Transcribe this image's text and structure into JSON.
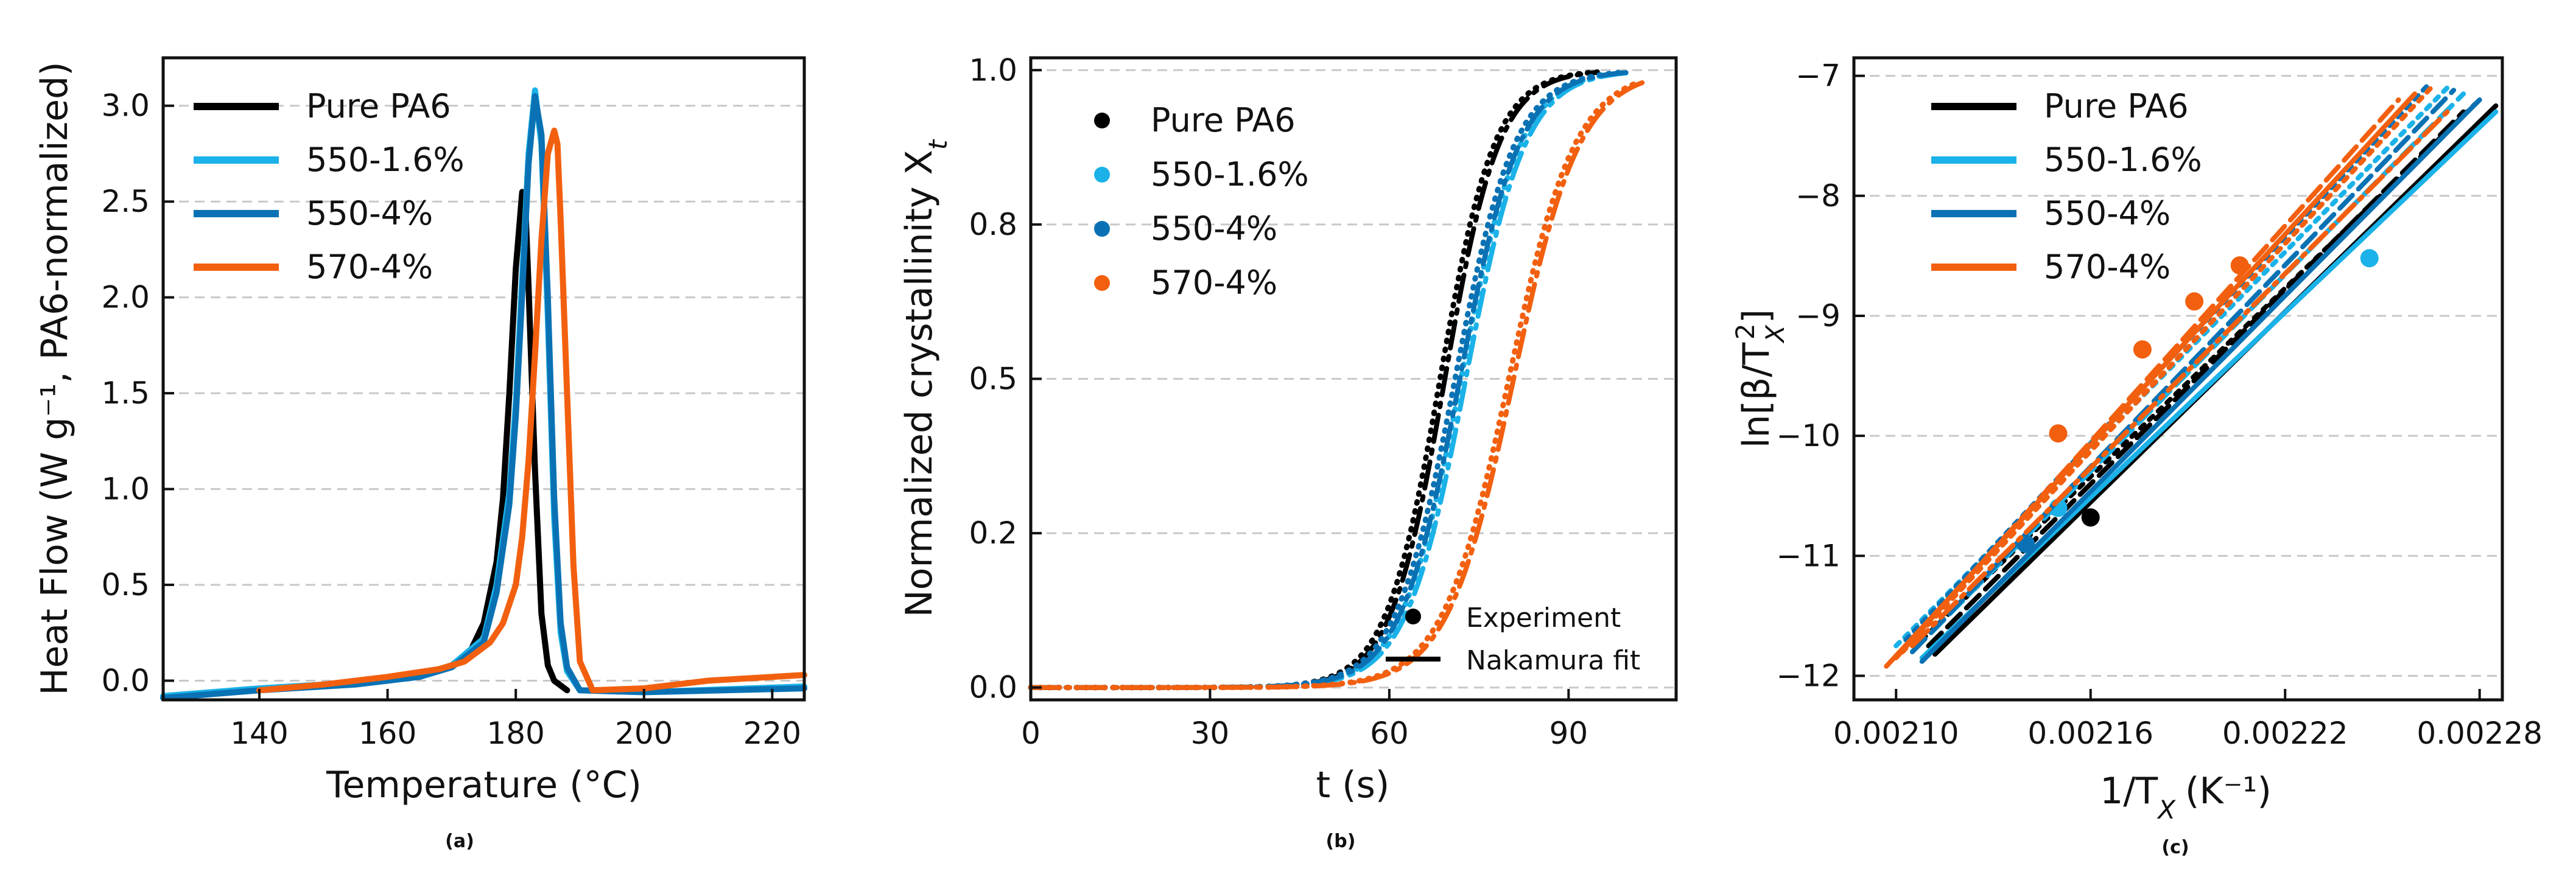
{
  "colors": {
    "Pure PA6": "#000000",
    "550-1.6%": "#1ab2e8",
    "550-4%": "#0a72b4",
    "570-4%": "#f2600f",
    "grid": "#c8c8c8"
  },
  "chart_data": [
    {
      "id": "a",
      "type": "line",
      "panel_label": "(a)",
      "title": "",
      "xlabel": "Temperature (°C)",
      "ylabel": "Heat Flow (W g⁻¹, PA6-normalized)",
      "xlim": [
        125,
        225
      ],
      "ylim": [
        -0.1,
        3.25
      ],
      "xticks": [
        140,
        160,
        180,
        200,
        220
      ],
      "yticks": [
        0.0,
        0.5,
        1.0,
        1.5,
        2.0,
        2.5,
        3.0
      ],
      "xtick_labels": [
        "140",
        "160",
        "180",
        "200",
        "220"
      ],
      "ytick_labels": [
        "0.0",
        "0.5",
        "1.0",
        "1.5",
        "2.0",
        "2.5",
        "3.0"
      ],
      "grid": "horizontal dashed",
      "legend_placement": "top-left",
      "series": [
        {
          "name": "Pure PA6",
          "x": [
            165,
            170,
            173,
            175,
            177,
            178,
            179,
            180,
            181,
            181.5,
            182,
            183,
            184,
            185,
            186,
            188
          ],
          "y": [
            0.02,
            0.08,
            0.16,
            0.3,
            0.62,
            0.95,
            1.5,
            2.15,
            2.55,
            2.48,
            2.05,
            1.1,
            0.35,
            0.08,
            0.0,
            -0.05
          ]
        },
        {
          "name": "550-1.6%",
          "x": [
            125,
            140,
            155,
            165,
            170,
            175,
            177,
            179,
            180,
            181,
            182,
            183,
            184,
            185,
            186,
            187,
            188,
            190,
            200,
            225
          ],
          "y": [
            -0.08,
            -0.04,
            -0.01,
            0.03,
            0.08,
            0.22,
            0.5,
            0.98,
            1.45,
            2.1,
            2.75,
            3.08,
            2.8,
            1.9,
            0.85,
            0.25,
            0.05,
            -0.05,
            -0.06,
            -0.03
          ]
        },
        {
          "name": "550-4%",
          "x": [
            125,
            140,
            155,
            165,
            170,
            175,
            177,
            179,
            180,
            181,
            182,
            183,
            184,
            185,
            186,
            187,
            188,
            190,
            200,
            225
          ],
          "y": [
            -0.09,
            -0.05,
            -0.02,
            0.02,
            0.07,
            0.2,
            0.46,
            0.92,
            1.38,
            2.02,
            2.7,
            3.05,
            2.85,
            2.0,
            0.95,
            0.3,
            0.07,
            -0.05,
            -0.06,
            -0.04
          ]
        },
        {
          "name": "570-4%",
          "x": [
            140,
            150,
            160,
            168,
            172,
            176,
            178,
            180,
            181,
            182,
            183,
            184,
            185,
            186,
            186.5,
            187,
            188,
            189,
            190,
            192,
            200,
            210,
            225
          ],
          "y": [
            -0.05,
            -0.02,
            0.02,
            0.06,
            0.1,
            0.2,
            0.3,
            0.5,
            0.75,
            1.15,
            1.7,
            2.3,
            2.75,
            2.87,
            2.8,
            2.4,
            1.5,
            0.6,
            0.1,
            -0.05,
            -0.04,
            0.0,
            0.03
          ]
        }
      ]
    },
    {
      "id": "b",
      "type": "line",
      "panel_label": "(b)",
      "title": "",
      "xlabel": "t (s)",
      "ylabel_main": "Normalized crystallinity X",
      "ylabel_sub": "t",
      "xlim": [
        0,
        108
      ],
      "ylim": [
        -0.02,
        1.02
      ],
      "xticks": [
        0,
        30,
        60,
        90
      ],
      "yticks": [
        0.0,
        0.25,
        0.5,
        0.75,
        1.0
      ],
      "xtick_labels": [
        "0",
        "30",
        "60",
        "90"
      ],
      "ytick_labels": [
        "0.0",
        "0.2",
        "0.5",
        "0.8",
        "1.0"
      ],
      "grid": "horizontal dashed",
      "legend_placement": "top-left",
      "style_legend": {
        "experiment": "Experiment",
        "fit": "Nakamura fit",
        "placement": "bottom-right"
      },
      "series": [
        {
          "name": "Pure PA6",
          "t_half": 68.5,
          "k": 0.22,
          "t_min": 0,
          "t_max": 95
        },
        {
          "name": "550-1.6%",
          "t_half": 72.0,
          "k": 0.2,
          "t_min": 0,
          "t_max": 100
        },
        {
          "name": "550-4%",
          "t_half": 71.0,
          "k": 0.2,
          "t_min": 0,
          "t_max": 100
        },
        {
          "name": "570-4%",
          "t_half": 80.0,
          "k": 0.18,
          "t_min": 0,
          "t_max": 103
        }
      ]
    },
    {
      "id": "c",
      "type": "line",
      "panel_label": "(c)",
      "title": "",
      "xlabel_main": "1/T",
      "xlabel_sub": "X",
      "xlabel_unit": "(K⁻¹)",
      "ylabel_pre": "ln[β/T",
      "ylabel_sub": "X",
      "ylabel_sup": "2",
      "ylabel_post": "]",
      "xlim": [
        0.002087,
        0.002287
      ],
      "ylim": [
        -12.2,
        -6.85
      ],
      "xticks": [
        0.0021,
        0.00216,
        0.00222,
        0.00228
      ],
      "yticks": [
        -12,
        -11,
        -10,
        -9,
        -8,
        -7
      ],
      "xtick_labels": [
        "0.00210",
        "0.00216",
        "0.00222",
        "0.00228"
      ],
      "ytick_labels": [
        "−12",
        "−11",
        "−10",
        "−9",
        "−8",
        "−7"
      ],
      "grid": "horizontal dashed",
      "legend_placement": "top-left",
      "series": [
        {
          "name": "Pure PA6",
          "lines": [
            [
              0.002112,
              -11.82,
              0.002285,
              -7.25
            ],
            [
              0.00211,
              -11.75,
              0.002275,
              -7.3
            ],
            [
              0.002108,
              -11.7,
              0.00228,
              -7.2
            ]
          ],
          "points": [
            [
              0.00216,
              -10.68
            ]
          ]
        },
        {
          "name": "550-1.6%",
          "lines": [
            [
              0.002108,
              -11.85,
              0.002285,
              -7.3
            ],
            [
              0.002105,
              -11.8,
              0.002275,
              -7.15
            ],
            [
              0.0021,
              -11.75,
              0.00227,
              -7.1
            ]
          ],
          "points": [
            [
              0.002246,
              -8.52
            ],
            [
              0.00215,
              -10.6
            ]
          ]
        },
        {
          "name": "550-4%",
          "lines": [
            [
              0.002108,
              -11.88,
              0.00228,
              -7.2
            ],
            [
              0.002105,
              -11.8,
              0.002272,
              -7.12
            ],
            [
              0.002103,
              -11.7,
              0.002265,
              -7.05
            ]
          ],
          "points": [
            [
              0.00214,
              -10.9
            ]
          ]
        },
        {
          "name": "570-4%",
          "lines": [
            [
              0.002097,
              -11.92,
              0.00226,
              -7.15
            ],
            [
              0.0021,
              -11.85,
              0.002255,
              -7.2
            ],
            [
              0.002102,
              -11.8,
              0.002265,
              -7.1
            ],
            [
              0.002105,
              -11.75,
              0.00227,
              -7.3
            ]
          ],
          "points": [
            [
              0.00215,
              -9.98
            ],
            [
              0.002176,
              -9.28
            ],
            [
              0.002192,
              -8.88
            ],
            [
              0.002206,
              -8.58
            ]
          ]
        }
      ]
    }
  ]
}
